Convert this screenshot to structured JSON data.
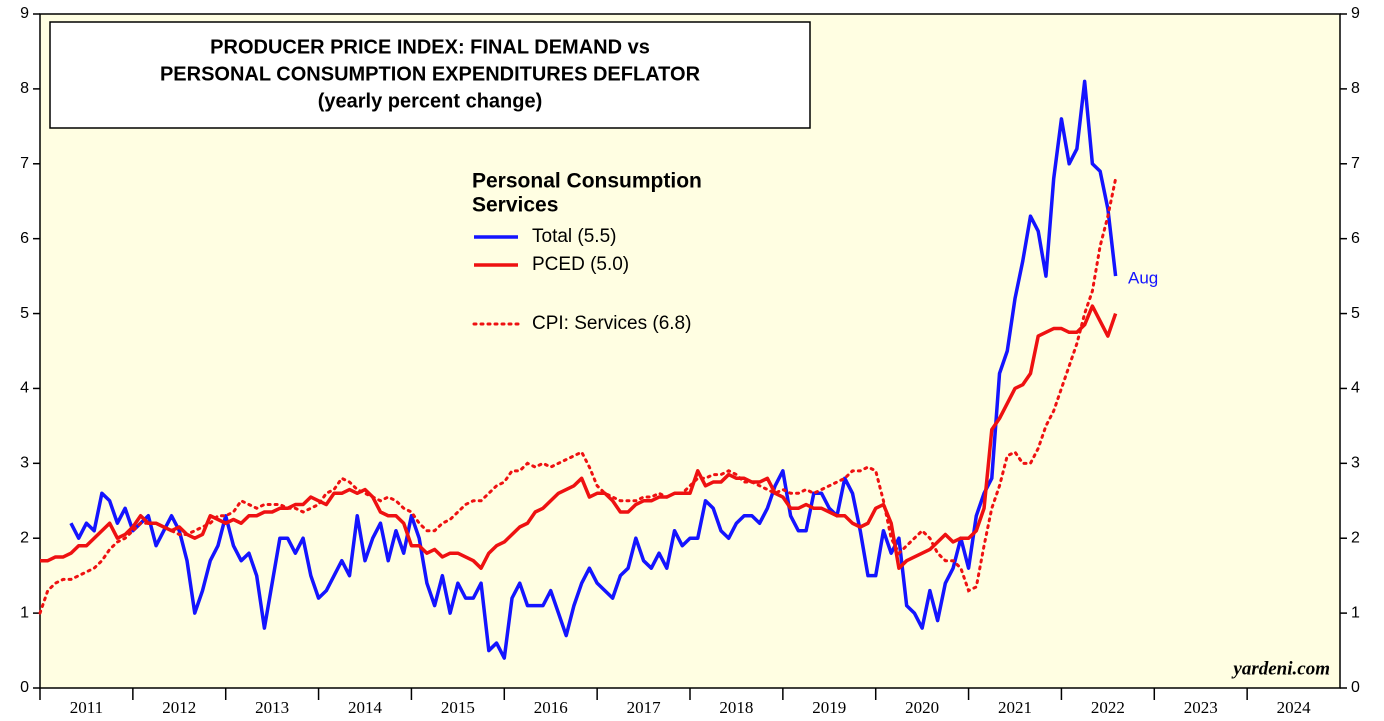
{
  "chart_data": {
    "type": "line",
    "title": [
      "PRODUCER PRICE INDEX: FINAL DEMAND vs",
      "PERSONAL CONSUMPTION EXPENDITURES DEFLATOR"
    ],
    "subtitle": "(yearly percent change)",
    "legend_title": [
      "Personal Consumption",
      "Services"
    ],
    "annotations": [
      "Aug",
      "yardeni.com"
    ],
    "xlim": [
      "2011-01",
      "2025-01"
    ],
    "xticks": [
      2011,
      2012,
      2013,
      2014,
      2015,
      2016,
      2017,
      2018,
      2019,
      2020,
      2021,
      2022,
      2023,
      2024
    ],
    "ylim": [
      0,
      9
    ],
    "yticks": [
      0,
      1,
      2,
      3,
      4,
      5,
      6,
      7,
      8,
      9
    ],
    "x": [
      "2011-01",
      "2011-02",
      "2011-03",
      "2011-04",
      "2011-05",
      "2011-06",
      "2011-07",
      "2011-08",
      "2011-09",
      "2011-10",
      "2011-11",
      "2011-12",
      "2012-01",
      "2012-02",
      "2012-03",
      "2012-04",
      "2012-05",
      "2012-06",
      "2012-07",
      "2012-08",
      "2012-09",
      "2012-10",
      "2012-11",
      "2012-12",
      "2013-01",
      "2013-02",
      "2013-03",
      "2013-04",
      "2013-05",
      "2013-06",
      "2013-07",
      "2013-08",
      "2013-09",
      "2013-10",
      "2013-11",
      "2013-12",
      "2014-01",
      "2014-02",
      "2014-03",
      "2014-04",
      "2014-05",
      "2014-06",
      "2014-07",
      "2014-08",
      "2014-09",
      "2014-10",
      "2014-11",
      "2014-12",
      "2015-01",
      "2015-02",
      "2015-03",
      "2015-04",
      "2015-05",
      "2015-06",
      "2015-07",
      "2015-08",
      "2015-09",
      "2015-10",
      "2015-11",
      "2015-12",
      "2016-01",
      "2016-02",
      "2016-03",
      "2016-04",
      "2016-05",
      "2016-06",
      "2016-07",
      "2016-08",
      "2016-09",
      "2016-10",
      "2016-11",
      "2016-12",
      "2017-01",
      "2017-02",
      "2017-03",
      "2017-04",
      "2017-05",
      "2017-06",
      "2017-07",
      "2017-08",
      "2017-09",
      "2017-10",
      "2017-11",
      "2017-12",
      "2018-01",
      "2018-02",
      "2018-03",
      "2018-04",
      "2018-05",
      "2018-06",
      "2018-07",
      "2018-08",
      "2018-09",
      "2018-10",
      "2018-11",
      "2018-12",
      "2019-01",
      "2019-02",
      "2019-03",
      "2019-04",
      "2019-05",
      "2019-06",
      "2019-07",
      "2019-08",
      "2019-09",
      "2019-10",
      "2019-11",
      "2019-12",
      "2020-01",
      "2020-02",
      "2020-03",
      "2020-04",
      "2020-05",
      "2020-06",
      "2020-07",
      "2020-08",
      "2020-09",
      "2020-10",
      "2020-11",
      "2020-12",
      "2021-01",
      "2021-02",
      "2021-03",
      "2021-04",
      "2021-05",
      "2021-06",
      "2021-07",
      "2021-08",
      "2021-09",
      "2021-10",
      "2021-11",
      "2021-12",
      "2022-01",
      "2022-02",
      "2022-03",
      "2022-04",
      "2022-05",
      "2022-06",
      "2022-07",
      "2022-08"
    ],
    "series": [
      {
        "name": "Total (5.5)",
        "color": "#1414ff",
        "style": "solid",
        "values": [
          null,
          null,
          null,
          null,
          2.2,
          2.0,
          2.2,
          2.1,
          2.6,
          2.5,
          2.2,
          2.4,
          2.1,
          2.2,
          2.3,
          1.9,
          2.1,
          2.3,
          2.1,
          1.7,
          1.0,
          1.3,
          1.7,
          1.9,
          2.3,
          1.9,
          1.7,
          1.8,
          1.5,
          0.8,
          1.4,
          2.0,
          2.0,
          1.8,
          2.0,
          1.5,
          1.2,
          1.3,
          1.5,
          1.7,
          1.5,
          2.3,
          1.7,
          2.0,
          2.2,
          1.7,
          2.1,
          1.8,
          2.3,
          2.0,
          1.4,
          1.1,
          1.5,
          1.0,
          1.4,
          1.2,
          1.2,
          1.4,
          0.5,
          0.6,
          0.4,
          1.2,
          1.4,
          1.1,
          1.1,
          1.1,
          1.3,
          1.0,
          0.7,
          1.1,
          1.4,
          1.6,
          1.4,
          1.3,
          1.2,
          1.5,
          1.6,
          2.0,
          1.7,
          1.6,
          1.8,
          1.6,
          2.1,
          1.9,
          2.0,
          2.0,
          2.5,
          2.4,
          2.1,
          2.0,
          2.2,
          2.3,
          2.3,
          2.2,
          2.4,
          2.7,
          2.9,
          2.3,
          2.1,
          2.1,
          2.6,
          2.6,
          2.4,
          2.3,
          2.8,
          2.6,
          2.1,
          1.5,
          1.5,
          2.1,
          1.8,
          2.0,
          1.1,
          1.0,
          0.8,
          1.3,
          0.9,
          1.4,
          1.6,
          2.0,
          1.6,
          2.3,
          2.6,
          2.8,
          4.2,
          4.5,
          5.2,
          5.7,
          6.3,
          6.1,
          5.5,
          6.8,
          7.6,
          7.0,
          7.2,
          8.1,
          7.0,
          6.9,
          6.4,
          5.5
        ]
      },
      {
        "name": "PCED (5.0)",
        "color": "#ee1111",
        "style": "solid",
        "values": [
          1.7,
          1.7,
          1.75,
          1.75,
          1.8,
          1.9,
          1.9,
          2.0,
          2.1,
          2.2,
          2.0,
          2.05,
          2.15,
          2.3,
          2.2,
          2.2,
          2.15,
          2.1,
          2.15,
          2.05,
          2.0,
          2.05,
          2.3,
          2.25,
          2.2,
          2.25,
          2.2,
          2.3,
          2.3,
          2.35,
          2.35,
          2.4,
          2.4,
          2.45,
          2.45,
          2.55,
          2.5,
          2.45,
          2.6,
          2.6,
          2.65,
          2.6,
          2.65,
          2.55,
          2.35,
          2.3,
          2.3,
          2.2,
          1.9,
          1.9,
          1.8,
          1.85,
          1.75,
          1.8,
          1.8,
          1.75,
          1.7,
          1.6,
          1.8,
          1.9,
          1.95,
          2.05,
          2.15,
          2.2,
          2.35,
          2.4,
          2.5,
          2.6,
          2.65,
          2.7,
          2.8,
          2.55,
          2.6,
          2.6,
          2.5,
          2.35,
          2.35,
          2.45,
          2.5,
          2.5,
          2.55,
          2.55,
          2.6,
          2.6,
          2.6,
          2.9,
          2.7,
          2.75,
          2.75,
          2.85,
          2.8,
          2.8,
          2.75,
          2.75,
          2.8,
          2.6,
          2.55,
          2.4,
          2.4,
          2.45,
          2.4,
          2.4,
          2.35,
          2.3,
          2.3,
          2.2,
          2.15,
          2.2,
          2.4,
          2.45,
          2.2,
          1.6,
          1.7,
          1.75,
          1.8,
          1.85,
          1.95,
          2.05,
          1.95,
          2.0,
          2.0,
          2.1,
          2.4,
          3.45,
          3.6,
          3.8,
          4.0,
          4.05,
          4.2,
          4.7,
          4.75,
          4.8,
          4.8,
          4.75,
          4.75,
          4.85,
          5.1,
          4.9,
          4.7,
          5.0
        ]
      },
      {
        "name": "CPI: Services (6.8)",
        "color": "#ee1111",
        "style": "dotted",
        "values": [
          1.0,
          1.3,
          1.4,
          1.45,
          1.45,
          1.5,
          1.55,
          1.6,
          1.7,
          1.85,
          1.95,
          2.0,
          2.1,
          2.2,
          2.2,
          2.2,
          2.15,
          2.1,
          2.05,
          2.05,
          2.1,
          2.15,
          2.2,
          2.3,
          2.3,
          2.35,
          2.5,
          2.45,
          2.4,
          2.45,
          2.45,
          2.45,
          2.4,
          2.4,
          2.35,
          2.4,
          2.45,
          2.6,
          2.65,
          2.8,
          2.75,
          2.65,
          2.6,
          2.55,
          2.5,
          2.55,
          2.5,
          2.4,
          2.35,
          2.2,
          2.1,
          2.1,
          2.2,
          2.25,
          2.35,
          2.45,
          2.5,
          2.5,
          2.6,
          2.7,
          2.75,
          2.9,
          2.9,
          3.0,
          2.95,
          3.0,
          2.95,
          3.0,
          3.05,
          3.1,
          3.15,
          2.95,
          2.7,
          2.6,
          2.55,
          2.5,
          2.5,
          2.5,
          2.55,
          2.55,
          2.6,
          2.55,
          2.6,
          2.6,
          2.7,
          2.8,
          2.8,
          2.85,
          2.85,
          2.9,
          2.85,
          2.75,
          2.75,
          2.7,
          2.65,
          2.6,
          2.65,
          2.6,
          2.6,
          2.65,
          2.6,
          2.65,
          2.7,
          2.75,
          2.8,
          2.9,
          2.9,
          2.95,
          2.9,
          2.5,
          2.0,
          1.8,
          1.9,
          2.0,
          2.1,
          2.0,
          1.8,
          1.7,
          1.7,
          1.6,
          1.3,
          1.35,
          1.9,
          2.4,
          2.7,
          3.1,
          3.15,
          3.0,
          3.0,
          3.2,
          3.5,
          3.7,
          4.0,
          4.3,
          4.6,
          5.0,
          5.3,
          5.9,
          6.3,
          6.8
        ]
      }
    ]
  }
}
